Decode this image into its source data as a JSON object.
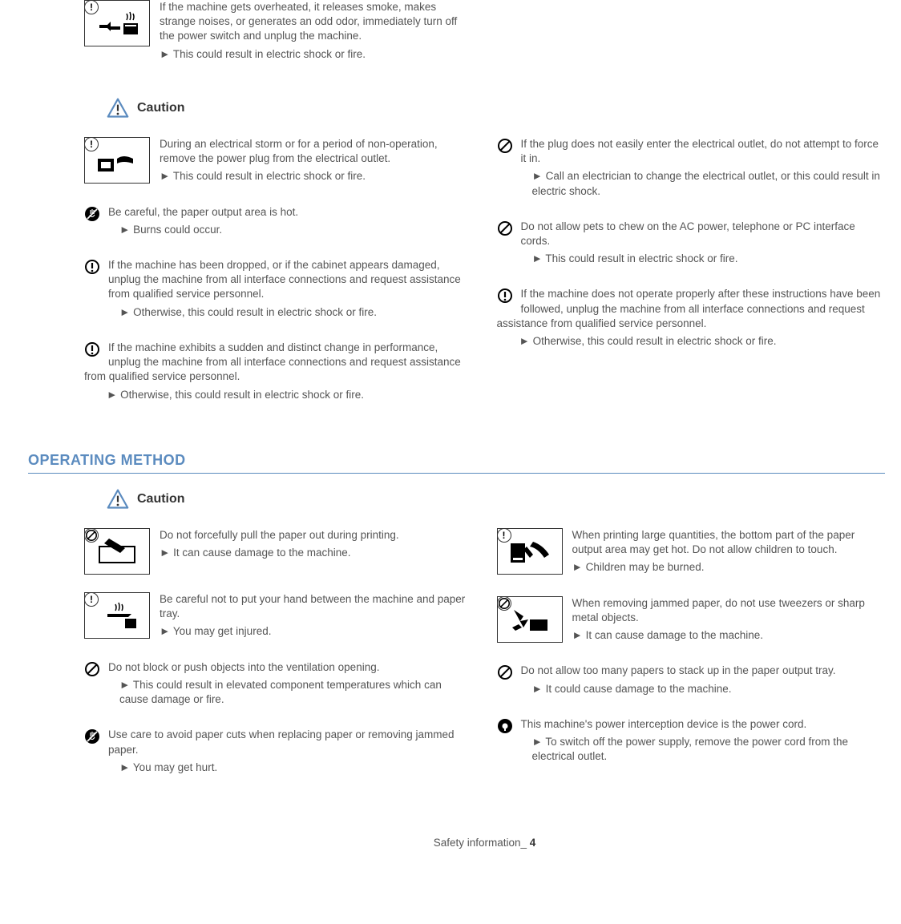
{
  "top": {
    "text": "If the machine gets overheated, it releases smoke, makes strange noises, or generates an odd odor, immediately turn off the power switch and unplug the machine.",
    "result": "This could result in electric shock or fire."
  },
  "caution1_label": "Caution",
  "s1": {
    "left": [
      {
        "illus": true,
        "badge": "exclaim",
        "text": "During an electrical storm or for a period of non-operation, remove the power plug from the electrical outlet.",
        "result": "This could result in electric shock or fire."
      },
      {
        "icon": "notouch",
        "text": "Be careful, the paper output area is hot.",
        "result": "Burns could occur."
      },
      {
        "icon": "exclaim",
        "text": "If the machine has been dropped, or if the cabinet appears damaged, unplug the machine from all interface connections and request assistance from qualified service personnel.",
        "result": "Otherwise, this could result in electric shock or fire."
      },
      {
        "icon": "exclaim",
        "wrap": true,
        "text": "If the machine exhibits a sudden and distinct change in performance, unplug the machine from all interface connections and request assistance from qualified service personnel.",
        "result": "Otherwise, this could result in electric shock or fire."
      }
    ],
    "right": [
      {
        "icon": "prohibit",
        "text": "If the plug does not easily enter the electrical outlet, do not attempt to force it in.",
        "result": "Call an electrician to change the electrical outlet, or this could result in electric shock."
      },
      {
        "icon": "prohibit",
        "text": "Do not allow pets to chew on the AC power, telephone or PC interface cords.",
        "result": "This could result in electric shock or fire."
      },
      {
        "icon": "exclaim",
        "wrap": true,
        "text": "If the machine does not operate properly after these instructions have been followed, unplug the machine from all interface connections and request assistance from qualified service personnel.",
        "result": "Otherwise, this could result in electric shock or fire."
      }
    ]
  },
  "section2_title": "OPERATING METHOD",
  "caution2_label": "Caution",
  "s2": {
    "left": [
      {
        "illus": true,
        "badge": "prohibit",
        "text": "Do not forcefully pull the paper out during printing.",
        "result": "It can cause damage to the machine."
      },
      {
        "illus": true,
        "badge": "exclaim",
        "text": "Be careful not to put your hand between the machine and paper tray.",
        "result": "You may get injured."
      },
      {
        "icon": "prohibit",
        "text": "Do not block or push objects into the ventilation opening.",
        "result": "This could result in elevated component temperatures which can cause damage or fire."
      },
      {
        "icon": "notouch",
        "text": "Use care to avoid paper cuts when replacing paper or removing jammed paper.",
        "result": "You may get hurt."
      }
    ],
    "right": [
      {
        "illus": true,
        "badge": "exclaim",
        "text": "When printing large quantities, the bottom part of the paper output area may get hot. Do not allow children to touch.",
        "result": "Children may be burned."
      },
      {
        "illus": true,
        "badge": "prohibit",
        "text": "When removing jammed paper, do not use tweezers or sharp metal objects.",
        "result": "It can cause damage to the machine."
      },
      {
        "icon": "prohibit",
        "text": "Do not allow too many papers to stack up in the paper output tray.",
        "result": "It could cause damage to the machine."
      },
      {
        "icon": "must",
        "text": "This machine's power interception device is the power cord.",
        "result": "To switch off the power supply, remove the power cord from the electrical outlet."
      }
    ]
  },
  "footer_text": "Safety information_",
  "footer_page": "4"
}
